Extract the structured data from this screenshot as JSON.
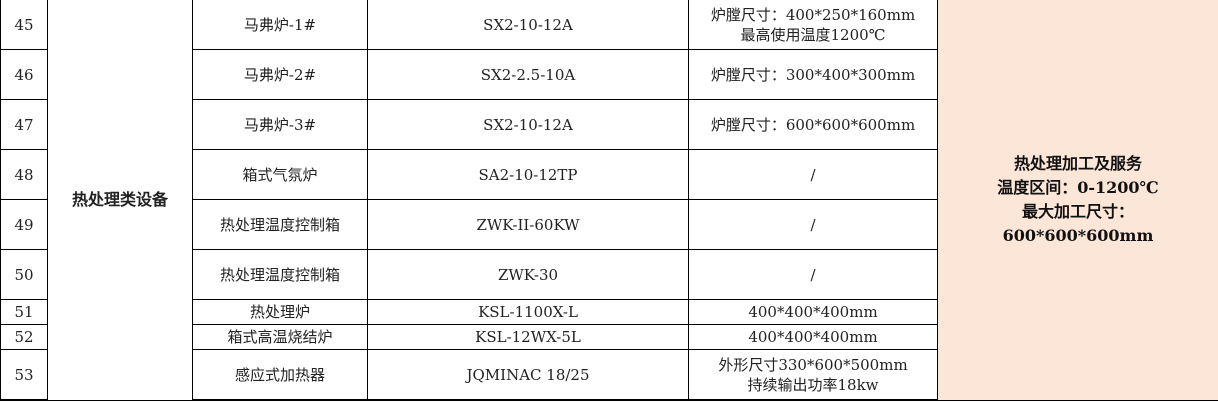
{
  "category": "热处理类设备",
  "note": [
    "热处理加工及服务",
    "温度区间：0-1200℃",
    "最大加工尺寸：",
    "600*600*600mm"
  ],
  "note_bg": "#fce6d8",
  "rows": [
    {
      "no": "45",
      "name": "马弗炉-1#",
      "model": "SX2-10-12A",
      "spec": [
        "炉膛尺寸：400*250*160mm",
        "最高使用温度1200℃"
      ]
    },
    {
      "no": "46",
      "name": "马弗炉-2#",
      "model": "SX2-2.5-10A",
      "spec": [
        "炉膛尺寸：300*400*300mm"
      ]
    },
    {
      "no": "47",
      "name": "马弗炉-3#",
      "model": "SX2-10-12A",
      "spec": [
        "炉膛尺寸：600*600*600mm"
      ]
    },
    {
      "no": "48",
      "name": "箱式气氛炉",
      "model": "SA2-10-12TP",
      "spec": [
        "/"
      ]
    },
    {
      "no": "49",
      "name": "热处理温度控制箱",
      "model": "ZWK-II-60KW",
      "spec": [
        "/"
      ]
    },
    {
      "no": "50",
      "name": "热处理温度控制箱",
      "model": "ZWK-30",
      "spec": [
        "/"
      ]
    },
    {
      "no": "51",
      "name": "热处理炉",
      "model": "KSL-1100X-L",
      "spec": [
        "400*400*400mm"
      ]
    },
    {
      "no": "52",
      "name": "箱式高温烧结炉",
      "model": "KSL-12WX-5L",
      "spec": [
        "400*400*400mm"
      ]
    },
    {
      "no": "53",
      "name": "感应式加热器",
      "model": "JQMINAC 18/25",
      "spec": [
        "外形尺寸330*600*500mm",
        "持续输出功率18kw"
      ]
    }
  ]
}
